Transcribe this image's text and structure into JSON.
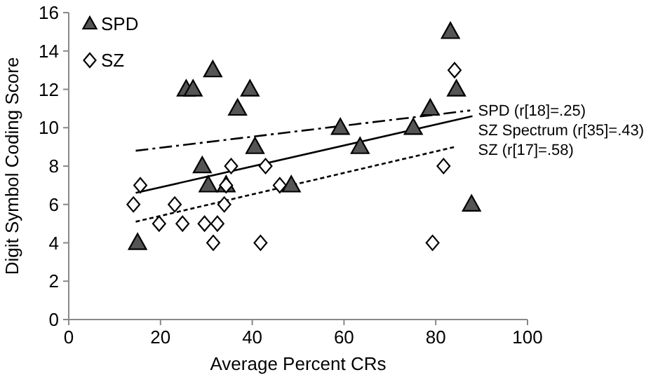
{
  "chart_data": {
    "type": "scatter",
    "xlabel": "Average Percent CRs",
    "ylabel": "Digit Symbol Coding Score",
    "xlim": [
      0,
      100
    ],
    "ylim": [
      0,
      16
    ],
    "xticks": [
      0,
      20,
      40,
      60,
      80,
      100
    ],
    "yticks": [
      0,
      2,
      4,
      6,
      8,
      10,
      12,
      14,
      16
    ],
    "grid": false,
    "legend": "top left",
    "series": [
      {
        "name": "SPD",
        "marker": "triangle",
        "color": "#555555",
        "x": [
          15,
          25.6,
          27.1,
          31.4,
          36.8,
          39.5,
          40.6,
          29.1,
          30.4,
          34.3,
          48.5,
          59.2,
          63.5,
          75.1,
          78.8,
          83.2,
          84.5,
          87.8
        ],
        "values": [
          4,
          12,
          12,
          13,
          11,
          12,
          9,
          8,
          7,
          7,
          7,
          10,
          9,
          10,
          11,
          15,
          12,
          6
        ]
      },
      {
        "name": "SZ",
        "marker": "diamond",
        "color": "#ffffff",
        "x": [
          14.1,
          15.6,
          19.7,
          23.1,
          24.8,
          29.6,
          31.5,
          32.4,
          33.9,
          34.3,
          35.4,
          41.8,
          42.9,
          46,
          79.3,
          81.7,
          84.1
        ],
        "values": [
          6,
          7,
          5,
          6,
          5,
          5,
          4,
          5,
          6,
          7,
          8,
          4,
          8,
          7,
          4,
          8,
          13
        ]
      },
      {
        "name": "SPD (r[18]=.25)",
        "type": "line",
        "line_style": "dashed",
        "color": "#000000",
        "x": [
          14.6,
          87.5
        ],
        "values": [
          8.8,
          10.9
        ]
      },
      {
        "name": "SZ Spectrum (r[35]=.43)",
        "type": "line",
        "line_style": "solid",
        "color": "#000000",
        "x": [
          14.6,
          88
        ],
        "values": [
          6.6,
          10.6
        ]
      },
      {
        "name": "SZ (r[17]=.58)",
        "type": "line",
        "line_style": "dotted",
        "color": "#000000",
        "x": [
          14.6,
          84.2
        ],
        "values": [
          5.1,
          9.0
        ]
      }
    ]
  }
}
